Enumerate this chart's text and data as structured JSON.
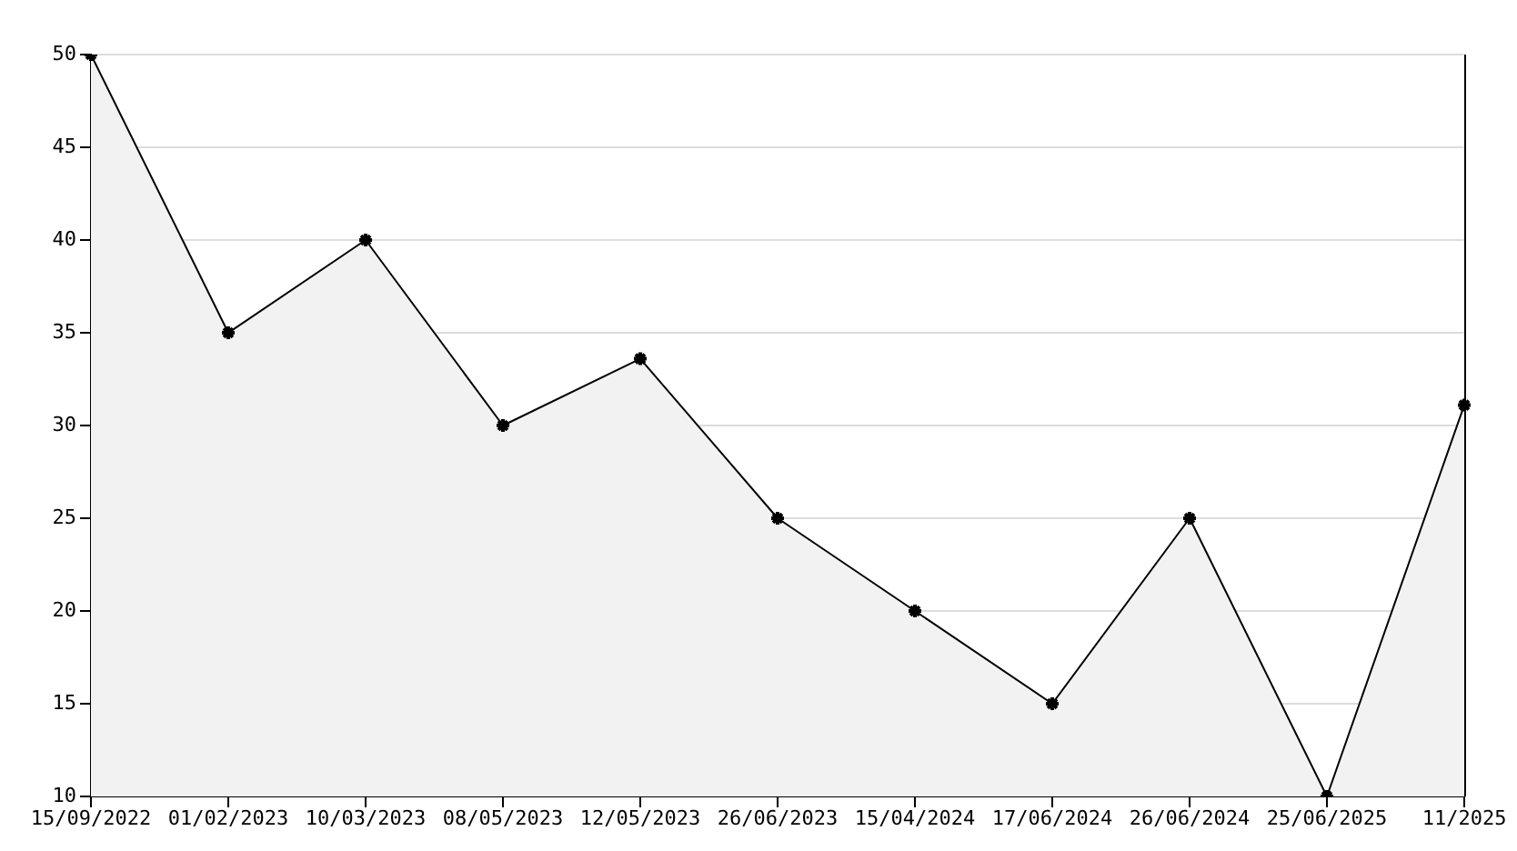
{
  "chart_data": {
    "type": "area",
    "categories": [
      "15/09/2022",
      "01/02/2023",
      "10/03/2023",
      "08/05/2023",
      "12/05/2023",
      "26/06/2023",
      "15/04/2024",
      "17/06/2024",
      "26/06/2024",
      "25/06/2025",
      "11/2025"
    ],
    "series": [
      {
        "color": "#000000",
        "values": [
          50,
          35,
          40,
          30,
          33.6,
          25,
          20,
          15,
          25,
          10,
          31.1
        ]
      }
    ],
    "ylim": [
      10,
      50
    ],
    "yticks": [
      10,
      15,
      20,
      25,
      30,
      35,
      40,
      45,
      50
    ],
    "grid": "y",
    "marker": "cross",
    "line_style": "solid",
    "legend": false
  }
}
